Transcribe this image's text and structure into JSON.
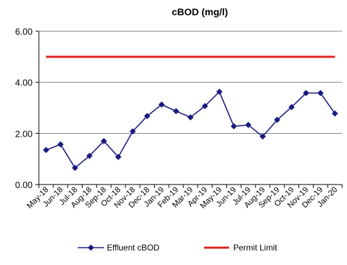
{
  "colors": {
    "series": "#1a1a80",
    "limit": "#e02020",
    "grid": "#808080",
    "axis": "#000000"
  },
  "chart_data": {
    "type": "line",
    "title": "cBOD (mg/l)",
    "xlabel": "",
    "ylabel": "",
    "ylim": [
      0,
      6
    ],
    "yticks": [
      "0.00",
      "2.00",
      "4.00",
      "6.00"
    ],
    "ytick_values": [
      0,
      2,
      4,
      6
    ],
    "grid": true,
    "legend_position": "bottom",
    "categories": [
      "May-18",
      "Jun-18",
      "Jul-18",
      "Aug-18",
      "Sep-18",
      "Oct-18",
      "Nov-18",
      "Dec-18",
      "Jan-19",
      "Feb-19",
      "Mar-19",
      "Apr-19",
      "May-19",
      "Jun-19",
      "Jul-19",
      "Aug-19",
      "Sep-19",
      "Oct-19",
      "Nov-19",
      "Dec-19",
      "Jan-20"
    ],
    "series": [
      {
        "name": "Effluent cBOD",
        "style": "line-with-diamond-markers",
        "values": [
          1.35,
          1.57,
          0.65,
          1.12,
          1.7,
          1.08,
          2.08,
          2.68,
          3.13,
          2.87,
          2.63,
          3.07,
          3.63,
          2.28,
          2.33,
          1.88,
          2.53,
          3.03,
          3.58,
          3.58,
          2.78
        ]
      },
      {
        "name": "Permit Limit",
        "style": "line",
        "values": [
          5,
          5,
          5,
          5,
          5,
          5,
          5,
          5,
          5,
          5,
          5,
          5,
          5,
          5,
          5,
          5,
          5,
          5,
          5,
          5,
          5
        ]
      }
    ]
  }
}
